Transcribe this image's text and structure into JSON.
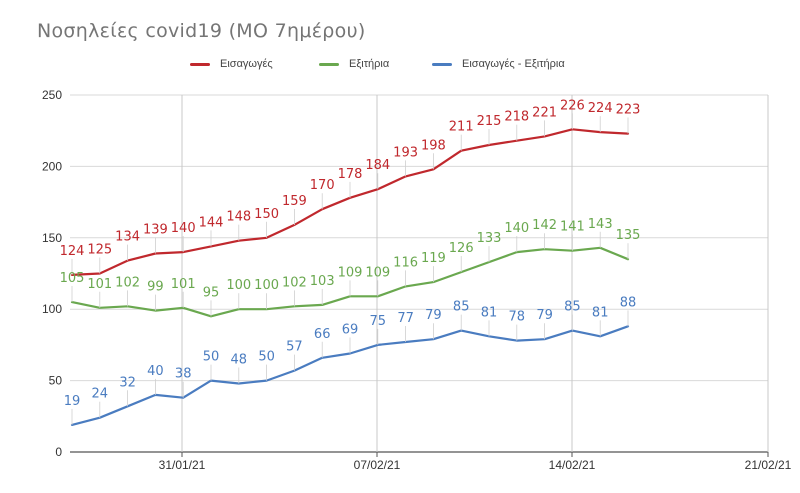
{
  "chart_data": {
    "type": "line",
    "title": "Νοσηλείες covid19 (ΜΟ 7ημέρου)",
    "xlabel": "",
    "ylabel": "",
    "ylim": [
      0,
      250
    ],
    "yticks": [
      0,
      50,
      100,
      150,
      200,
      250
    ],
    "xtick_labels": [
      "31/01/21",
      "07/02/21",
      "14/02/21",
      "21/02/21"
    ],
    "grid": true,
    "legend_position": "top",
    "series": [
      {
        "name": "Εισαγωγές",
        "color": "#c0282d",
        "values": [
          124,
          125,
          134,
          139,
          140,
          144,
          148,
          150,
          159,
          170,
          178,
          184,
          193,
          198,
          211,
          215,
          218,
          221,
          226,
          224,
          223
        ]
      },
      {
        "name": "Εξιτήρια",
        "color": "#6aa84f",
        "values": [
          105,
          101,
          102,
          99,
          101,
          95,
          100,
          100,
          102,
          103,
          109,
          109,
          116,
          119,
          126,
          133,
          140,
          142,
          141,
          143,
          135
        ]
      },
      {
        "name": "Εισαγωγές - Εξιτήρια",
        "color": "#4a7cc0",
        "values": [
          19,
          24,
          32,
          40,
          38,
          50,
          48,
          50,
          57,
          66,
          69,
          75,
          77,
          79,
          85,
          81,
          78,
          79,
          85,
          81,
          88
        ]
      }
    ]
  }
}
